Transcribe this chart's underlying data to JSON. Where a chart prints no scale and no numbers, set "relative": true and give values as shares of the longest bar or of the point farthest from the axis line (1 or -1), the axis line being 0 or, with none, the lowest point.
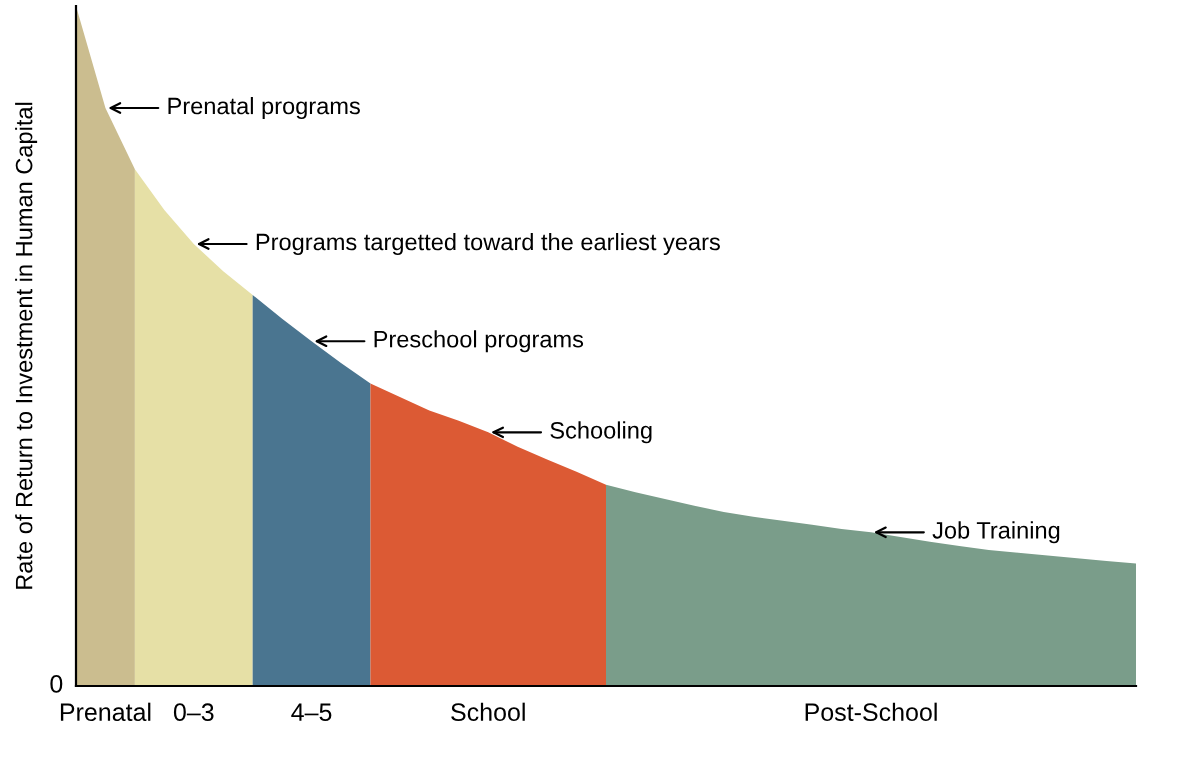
{
  "chart_data": {
    "type": "area",
    "relative": true,
    "ylabel": "Rate of Return to Investment in Human Capital",
    "categories": [
      null,
      "Prenatal",
      null,
      null,
      "0–3",
      null,
      null,
      null,
      "4–5",
      null,
      null,
      null,
      null,
      null,
      "School",
      null,
      null,
      null,
      null,
      null,
      null,
      null,
      null,
      null,
      null,
      null,
      null,
      "Post-School",
      null,
      null,
      null,
      null,
      null,
      null,
      null,
      null,
      null
    ],
    "series": [
      {
        "color": "#cbbd8f",
        "values": [
          1.0,
          0.85,
          0.76,
          null,
          null,
          null,
          null,
          null,
          null,
          null,
          null,
          null,
          null,
          null,
          null,
          null,
          null,
          null,
          null,
          null,
          null,
          null,
          null,
          null,
          null,
          null,
          null,
          null,
          null,
          null,
          null,
          null,
          null,
          null,
          null,
          null,
          null
        ]
      },
      {
        "color": "#e6e0a6",
        "values": [
          null,
          null,
          0.76,
          0.7,
          0.65,
          0.61,
          0.575,
          null,
          null,
          null,
          null,
          null,
          null,
          null,
          null,
          null,
          null,
          null,
          null,
          null,
          null,
          null,
          null,
          null,
          null,
          null,
          null,
          null,
          null,
          null,
          null,
          null,
          null,
          null,
          null,
          null,
          null
        ]
      },
      {
        "color": "#4a7590",
        "values": [
          null,
          null,
          null,
          null,
          null,
          null,
          0.575,
          0.54,
          0.507,
          0.475,
          0.445,
          null,
          null,
          null,
          null,
          null,
          null,
          null,
          null,
          null,
          null,
          null,
          null,
          null,
          null,
          null,
          null,
          null,
          null,
          null,
          null,
          null,
          null,
          null,
          null,
          null,
          null
        ]
      },
      {
        "color": "#dc5a34",
        "values": [
          null,
          null,
          null,
          null,
          null,
          null,
          null,
          null,
          null,
          null,
          0.445,
          0.425,
          0.405,
          0.39,
          0.373,
          0.352,
          0.333,
          0.315,
          0.296,
          null,
          null,
          null,
          null,
          null,
          null,
          null,
          null,
          null,
          null,
          null,
          null,
          null,
          null,
          null,
          null,
          null,
          null
        ]
      },
      {
        "color": "#7a9d8a",
        "values": [
          null,
          null,
          null,
          null,
          null,
          null,
          null,
          null,
          null,
          null,
          null,
          null,
          null,
          null,
          null,
          null,
          null,
          null,
          0.296,
          0.285,
          0.275,
          0.265,
          0.256,
          0.249,
          0.243,
          0.237,
          0.231,
          0.226,
          0.219,
          0.212,
          0.206,
          0.2,
          0.196,
          0.192,
          0.188,
          0.184,
          0.18
        ]
      }
    ],
    "annotations": [
      {
        "text": "Prenatal programs",
        "x": "Prenatal",
        "y": 0.85
      },
      {
        "text": "Programs targetted toward the earliest years",
        "x": "0–3",
        "y": 0.65
      },
      {
        "text": "Preschool programs",
        "x": "4–5",
        "y": 0.507
      },
      {
        "text": "Schooling",
        "x": "School",
        "y": 0.373
      },
      {
        "text": "Job Training",
        "x": "Post-School",
        "y": 0.226
      },
      "0"
    ],
    "grid": false,
    "legend": false
  }
}
